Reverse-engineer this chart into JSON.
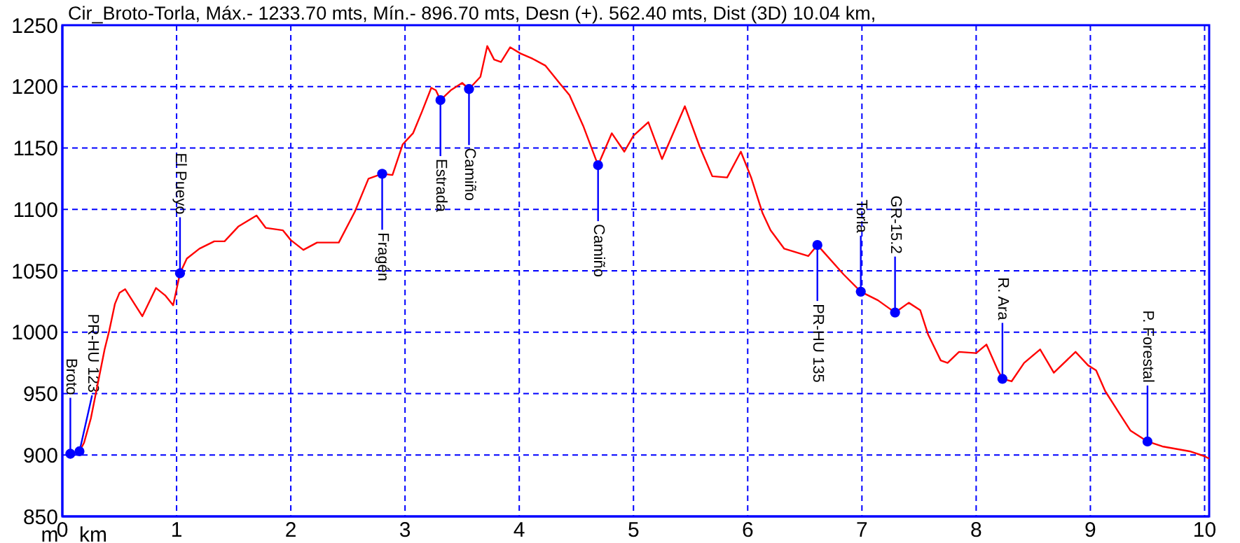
{
  "chart_data": {
    "type": "line",
    "title": "Cir_Broto-Torla, Máx.- 1233.70 mts, Mín.- 896.70 mts, Desn (+). 562.40 mts, Dist (3D) 10.04 km,",
    "xlabel": "km",
    "ylabel": "m",
    "xlim": [
      0,
      10.04
    ],
    "ylim": [
      850,
      1250
    ],
    "xticks": [
      0,
      1,
      2,
      3,
      4,
      5,
      6,
      7,
      8,
      9,
      10
    ],
    "yticks": [
      850,
      900,
      950,
      1000,
      1050,
      1100,
      1150,
      1200,
      1250
    ],
    "grid": true,
    "series": [
      {
        "color": "#ff0000",
        "marker": "none",
        "x": [
          0.07,
          0.15,
          0.19,
          0.25,
          0.31,
          0.37,
          0.41,
          0.46,
          0.5,
          0.55,
          0.7,
          0.82,
          0.9,
          0.97,
          1.03,
          1.09,
          1.2,
          1.33,
          1.42,
          1.54,
          1.7,
          1.78,
          1.93,
          2.0,
          2.11,
          2.23,
          2.42,
          2.56,
          2.68,
          2.8,
          2.89,
          2.98,
          3.07,
          3.15,
          3.23,
          3.27,
          3.31,
          3.4,
          3.5,
          3.56,
          3.66,
          3.72,
          3.78,
          3.84,
          3.92,
          4.01,
          4.11,
          4.23,
          4.36,
          4.44,
          4.56,
          4.69,
          4.81,
          4.92,
          5.0,
          5.13,
          5.25,
          5.45,
          5.58,
          5.69,
          5.82,
          5.94,
          6.03,
          6.13,
          6.2,
          6.32,
          6.53,
          6.61,
          6.84,
          6.99,
          7.14,
          7.29,
          7.41,
          7.51,
          7.58,
          7.69,
          7.75,
          7.85,
          8.0,
          8.09,
          8.19,
          8.23,
          8.31,
          8.42,
          8.56,
          8.68,
          8.87,
          8.98,
          9.05,
          9.13,
          9.26,
          9.35,
          9.5,
          9.63,
          9.87,
          10.0,
          10.04
        ],
        "values": [
          901,
          903,
          910,
          930,
          958,
          986,
          1001,
          1023,
          1032,
          1035,
          1013,
          1036,
          1030,
          1022,
          1048,
          1060,
          1068,
          1074,
          1074,
          1086,
          1095,
          1085,
          1083,
          1075,
          1067,
          1073,
          1073,
          1098,
          1125,
          1129,
          1128,
          1153,
          1162,
          1180,
          1199,
          1197,
          1189,
          1197,
          1203,
          1198,
          1208,
          1233,
          1222,
          1220,
          1232,
          1227,
          1223,
          1217,
          1202,
          1193,
          1168,
          1136,
          1162,
          1147,
          1160,
          1171,
          1141,
          1184,
          1151,
          1127,
          1126,
          1147,
          1126,
          1097,
          1083,
          1068,
          1062,
          1071,
          1047,
          1033,
          1026,
          1016,
          1024,
          1018,
          998,
          977,
          975,
          984,
          983,
          990,
          969,
          962,
          960,
          975,
          986,
          967,
          984,
          973,
          969,
          952,
          933,
          920,
          911,
          907,
          903,
          899,
          897
        ]
      },
      {
        "type": "scatter",
        "color": "#0000ff",
        "marker": "circle",
        "x": [
          0.07,
          0.15,
          1.03,
          2.8,
          3.31,
          3.56,
          4.69,
          6.61,
          6.99,
          7.29,
          8.23,
          9.5
        ],
        "values": [
          901,
          903,
          1048,
          1129,
          1189,
          1198,
          1136,
          1071,
          1033,
          1016,
          962,
          911
        ]
      }
    ],
    "annotations": [
      {
        "text": "Broto",
        "x": 0.07,
        "y": 901
      },
      {
        "text": "PR-HU 123",
        "x": 0.15,
        "y": 903
      },
      {
        "text": "El Pueyo",
        "x": 1.03,
        "y": 1048
      },
      {
        "text": "Fragén",
        "x": 2.8,
        "y": 1129
      },
      {
        "text": "Estrada",
        "x": 3.31,
        "y": 1189
      },
      {
        "text": "Camiño",
        "x": 3.56,
        "y": 1198
      },
      {
        "text": "Camiño",
        "x": 4.69,
        "y": 1136
      },
      {
        "text": "PR-HU 135",
        "x": 6.61,
        "y": 1071
      },
      {
        "text": "Torla",
        "x": 6.99,
        "y": 1033
      },
      {
        "text": "GR-15.2",
        "x": 7.29,
        "y": 1016
      },
      {
        "text": "R. Ara",
        "x": 8.23,
        "y": 962
      },
      {
        "text": "P. Forestal",
        "x": 9.5,
        "y": 911
      }
    ]
  }
}
